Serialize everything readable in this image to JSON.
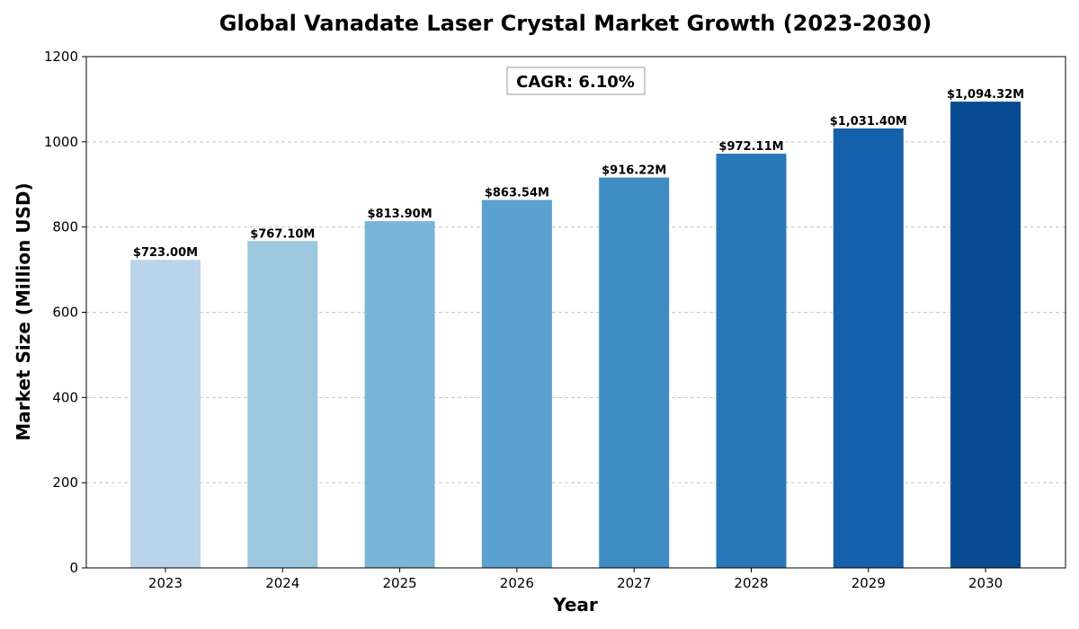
{
  "chart_data": {
    "type": "bar",
    "title": "Global Vanadate Laser Crystal Market Growth (2023-2030)",
    "xlabel": "Year",
    "ylabel": "Market Size (Million USD)",
    "categories": [
      "2023",
      "2024",
      "2025",
      "2026",
      "2027",
      "2028",
      "2029",
      "2030"
    ],
    "values": [
      723.0,
      767.1,
      813.9,
      863.54,
      916.22,
      972.11,
      1031.4,
      1094.32
    ],
    "data_labels": [
      "$723.00M",
      "$767.10M",
      "$813.90M",
      "$863.54M",
      "$916.22M",
      "$972.11M",
      "$1,031.40M",
      "$1,094.32M"
    ],
    "bar_colors": [
      "#b9d4ea",
      "#9cc7df",
      "#79b5d8",
      "#5aa1cf",
      "#3f8cc5",
      "#2878b9",
      "#1560aa",
      "#084b92"
    ],
    "ylim": [
      0,
      1200
    ],
    "yticks": [
      0,
      200,
      400,
      600,
      800,
      1000,
      1200
    ],
    "grid": true,
    "annotation": "CAGR: 6.10%"
  }
}
